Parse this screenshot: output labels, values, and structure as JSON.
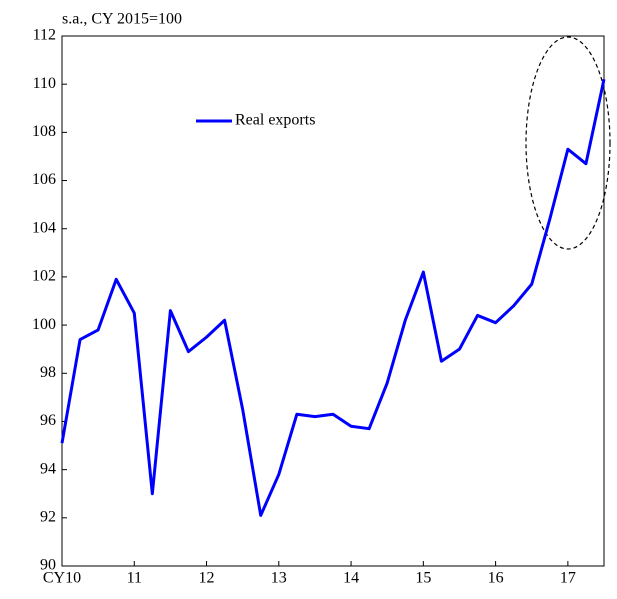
{
  "chart_data": {
    "type": "line",
    "subtitle": "s.a., CY 2015=100",
    "categories": [
      "CY10",
      null,
      null,
      null,
      "11",
      null,
      null,
      null,
      "12",
      null,
      null,
      null,
      "13",
      null,
      null,
      null,
      "14",
      null,
      null,
      null,
      "15",
      null,
      null,
      null,
      "16",
      null,
      null,
      null,
      "17",
      null,
      null
    ],
    "series": [
      {
        "name": "Real exports",
        "color": "#0000ff",
        "values": [
          95.1,
          99.4,
          99.8,
          101.9,
          100.5,
          93.0,
          100.6,
          98.9,
          99.5,
          100.2,
          96.5,
          92.1,
          93.8,
          96.3,
          96.2,
          96.3,
          95.8,
          95.7,
          97.6,
          100.2,
          102.2,
          98.5,
          99.0,
          100.4,
          100.1,
          100.8,
          101.7,
          104.4,
          107.3,
          106.7,
          110.2
        ]
      }
    ],
    "ylim": [
      90,
      112
    ],
    "yticks": [
      90,
      92,
      94,
      96,
      98,
      100,
      102,
      104,
      106,
      108,
      110,
      112
    ],
    "grid": false,
    "legend": "upper left"
  }
}
